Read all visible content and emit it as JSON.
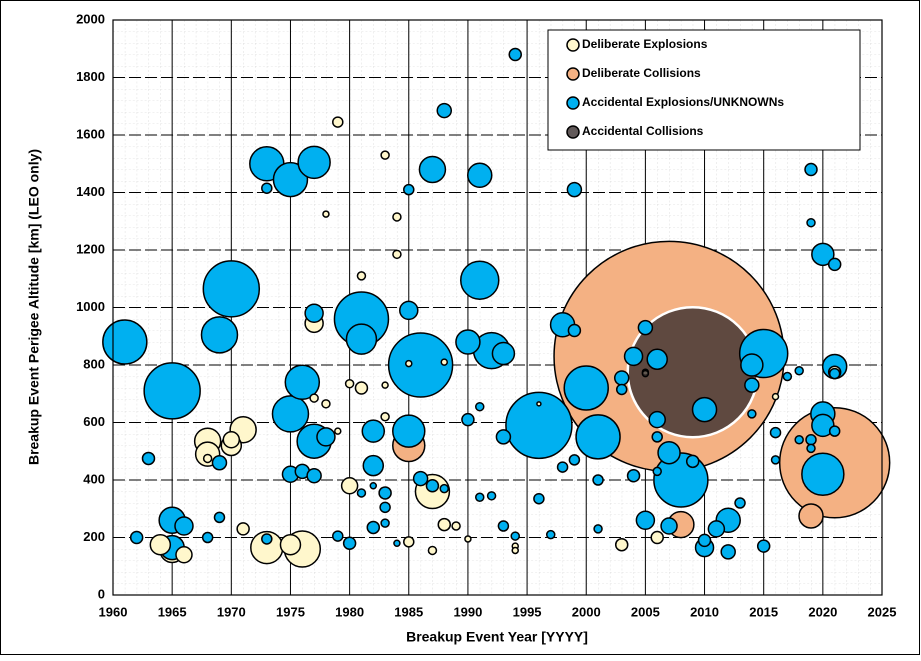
{
  "chart_data": {
    "type": "bubble",
    "x_label": "Breakup Event Year [YYYY]",
    "y_label": "Breakup Event Perigee Altitude [km] (LEO only)",
    "xlim": [
      1960,
      2025
    ],
    "xticks": [
      1960,
      1965,
      1970,
      1975,
      1980,
      1985,
      1990,
      1995,
      2000,
      2005,
      2010,
      2015,
      2020,
      2025
    ],
    "ylim": [
      0,
      2000
    ],
    "yticks": [
      0,
      200,
      400,
      600,
      800,
      1000,
      1200,
      1400,
      1600,
      1800,
      2000
    ],
    "grid": true,
    "legend": "upper right",
    "series": [
      {
        "name": "Deliberate Explosions",
        "color": "#fff7cc",
        "x": [
          1964,
          1965,
          1966,
          1968,
          1968,
          1968,
          1970,
          1970,
          1971,
          1971,
          1973,
          1975,
          1976,
          1977,
          1977,
          1978,
          1978,
          1979,
          1979,
          1980,
          1980,
          1981,
          1981,
          1983,
          1983,
          1983,
          1984,
          1984,
          1985,
          1985,
          1987,
          1987,
          1988,
          1988,
          1989,
          1990,
          1994,
          1994,
          1996,
          2003,
          2006,
          2005,
          2016,
          2021
        ],
        "values": [
          175,
          155,
          140,
          535,
          490,
          475,
          520,
          540,
          575,
          230,
          165,
          175,
          160,
          945,
          685,
          1325,
          665,
          1645,
          570,
          380,
          735,
          1110,
          720,
          1530,
          730,
          620,
          1315,
          1185,
          805,
          185,
          360,
          155,
          245,
          810,
          240,
          195,
          170,
          155,
          665,
          175,
          200,
          775,
          690,
          775
        ],
        "sizes": [
          100,
          144,
          64,
          169,
          144,
          16,
          100,
          64,
          169,
          36,
          256,
          100,
          324,
          81,
          16,
          9,
          16,
          25,
          9,
          64,
          16,
          16,
          36,
          16,
          9,
          16,
          16,
          16,
          9,
          25,
          289,
          16,
          36,
          9,
          16,
          9,
          9,
          9,
          4,
          36,
          36,
          9,
          9,
          36
        ]
      },
      {
        "name": "Deliberate Collisions",
        "color": "#f4b183",
        "x": [
          1985,
          2007,
          2008,
          2019,
          2021
        ],
        "values": [
          520,
          830,
          245,
          275,
          460
        ],
        "sizes": [
          256,
          13225,
          169,
          144,
          3025
        ]
      },
      {
        "name": "Accidental Explosions/UNKNOWNs",
        "color": "#00b0f0",
        "x": [
          1961,
          1965,
          1963,
          1962,
          1965,
          1965,
          1966,
          1968,
          1969,
          1969,
          1969,
          1970,
          1973,
          1973,
          1973,
          1975,
          1977,
          1975,
          1975,
          1976,
          1976,
          1977,
          1977,
          1977,
          1978,
          1979,
          1980,
          1981,
          1981,
          1981,
          1982,
          1982,
          1982,
          1982,
          1983,
          1983,
          1983,
          1984,
          1985,
          1985,
          1985,
          1986,
          1986,
          1987,
          1987,
          1988,
          1988,
          1990,
          1990,
          1991,
          1991,
          1991,
          1991,
          1992,
          1992,
          1993,
          1993,
          1993,
          1994,
          1994,
          1996,
          1996,
          1997,
          1998,
          1998,
          1999,
          1999,
          1999,
          2000,
          2001,
          2001,
          2001,
          2003,
          2003,
          2004,
          2004,
          2005,
          2005,
          2006,
          2006,
          2006,
          2006,
          2007,
          2008,
          2007,
          2009,
          2010,
          2010,
          2010,
          2011,
          2012,
          2012,
          2013,
          2014,
          2014,
          2014,
          2015,
          2015,
          2016,
          2016,
          2017,
          2018,
          2018,
          2019,
          2019,
          2019,
          2019,
          2020,
          2021,
          2020,
          2020,
          2020,
          2021,
          2021,
          2021
        ],
        "values": [
          880,
          710,
          475,
          200,
          260,
          165,
          240,
          200,
          460,
          270,
          905,
          1065,
          1500,
          1415,
          195,
          1445,
          1505,
          630,
          420,
          740,
          430,
          980,
          535,
          415,
          550,
          205,
          180,
          960,
          890,
          355,
          570,
          450,
          235,
          380,
          355,
          305,
          250,
          180,
          1410,
          990,
          570,
          800,
          405,
          1480,
          380,
          1685,
          370,
          880,
          610,
          1460,
          1095,
          655,
          340,
          850,
          345,
          840,
          550,
          240,
          1880,
          205,
          590,
          335,
          210,
          940,
          445,
          1410,
          920,
          470,
          720,
          550,
          400,
          230,
          755,
          715,
          830,
          415,
          930,
          260,
          820,
          610,
          550,
          430,
          495,
          400,
          240,
          465,
          645,
          190,
          165,
          230,
          260,
          150,
          320,
          800,
          730,
          630,
          840,
          170,
          565,
          470,
          760,
          780,
          540,
          1480,
          1295,
          540,
          510,
          1185,
          1150,
          630,
          590,
          420,
          795,
          770,
          570
        ],
        "sizes": [
          484,
          784,
          36,
          36,
          169,
          144,
          81,
          25,
          49,
          25,
          324,
          784,
          289,
          25,
          25,
          289,
          256,
          324,
          64,
          289,
          49,
          81,
          289,
          49,
          81,
          25,
          36,
          729,
          225,
          16,
          121,
          100,
          36,
          9,
          36,
          25,
          16,
          9,
          25,
          81,
          256,
          1024,
          49,
          169,
          36,
          49,
          16,
          144,
          36,
          144,
          361,
          16,
          16,
          324,
          16,
          121,
          49,
          25,
          36,
          16,
          1089,
          25,
          16,
          144,
          25,
          49,
          36,
          25,
          484,
          484,
          25,
          16,
          49,
          25,
          81,
          36,
          49,
          81,
          100,
          64,
          25,
          16,
          121,
          729,
          64,
          36,
          144,
          36,
          81,
          64,
          144,
          49,
          25,
          121,
          49,
          16,
          576,
          36,
          25,
          16,
          16,
          16,
          16,
          36,
          16,
          25,
          16,
          121,
          36,
          144,
          121,
          441,
          144,
          25,
          25
        ]
      },
      {
        "name": "Accidental Collisions",
        "color": "#3a3030",
        "x": [
          2009,
          2005
        ],
        "values": [
          775,
          770
        ],
        "sizes": [
          4225,
          9
        ]
      }
    ]
  }
}
